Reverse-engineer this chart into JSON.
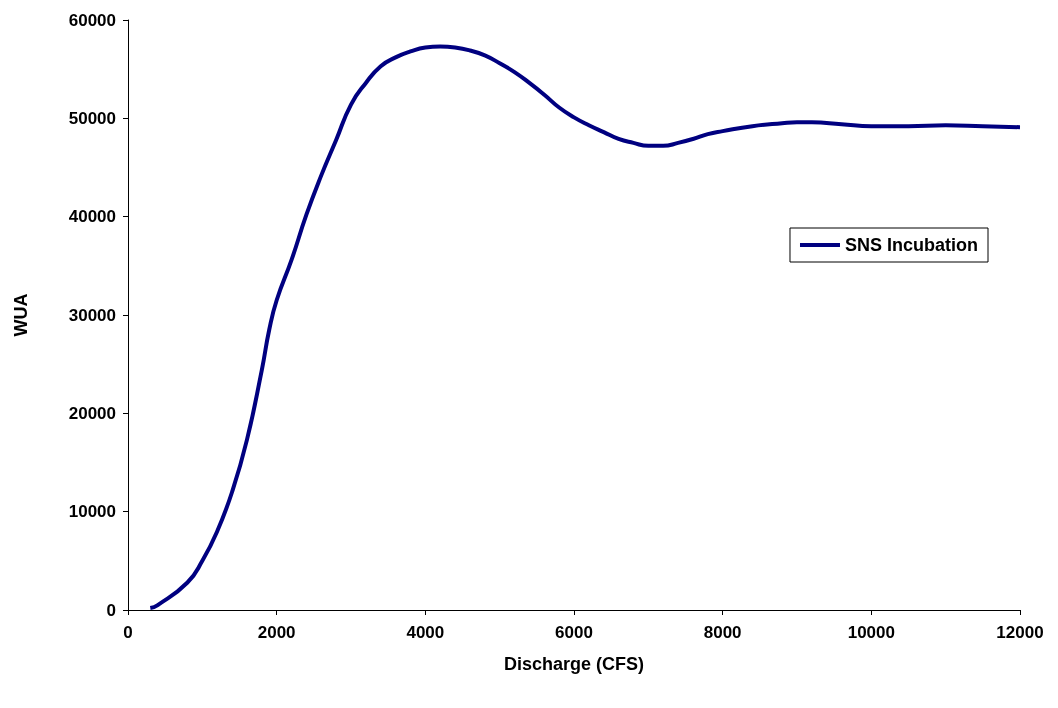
{
  "chart_data": {
    "type": "line",
    "xlabel": "Discharge (CFS)",
    "ylabel": "WUA",
    "xlim": [
      0,
      12000
    ],
    "xticks": [
      0,
      2000,
      4000,
      6000,
      8000,
      10000,
      12000
    ],
    "ylim": [
      0,
      60000
    ],
    "yticks": [
      0,
      10000,
      20000,
      30000,
      40000,
      50000,
      60000
    ],
    "grid": false,
    "legend": "right",
    "marker": "none",
    "line_style": "solid",
    "series": [
      {
        "name": "SNS Incubation",
        "color": "#000080",
        "x": [
          300,
          400,
          800,
          1000,
          1200,
          1400,
          1600,
          1800,
          1900,
          2000,
          2200,
          2400,
          2600,
          2800,
          3000,
          3200,
          3400,
          3600,
          3800,
          4000,
          4200,
          4400,
          4600,
          4800,
          5000,
          5200,
          5400,
          5600,
          5800,
          6000,
          6200,
          6400,
          6600,
          6800,
          7000,
          7200,
          7400,
          7600,
          7800,
          8000,
          8400,
          8800,
          9000,
          9200,
          9600,
          10000,
          10500,
          11000,
          11500,
          12000
        ],
        "values": [
          200,
          500,
          2800,
          5000,
          8000,
          12000,
          17300,
          24400,
          28500,
          31500,
          35600,
          40200,
          44200,
          47800,
          51400,
          53600,
          55300,
          56200,
          56800,
          57200,
          57300,
          57200,
          56900,
          56400,
          55600,
          54700,
          53600,
          52400,
          51100,
          50100,
          49300,
          48600,
          47900,
          47500,
          47200,
          47200,
          47500,
          47900,
          48400,
          48700,
          49200,
          49500,
          49600,
          49600,
          49400,
          49200,
          49200,
          49300,
          49200,
          49100
        ]
      }
    ]
  }
}
